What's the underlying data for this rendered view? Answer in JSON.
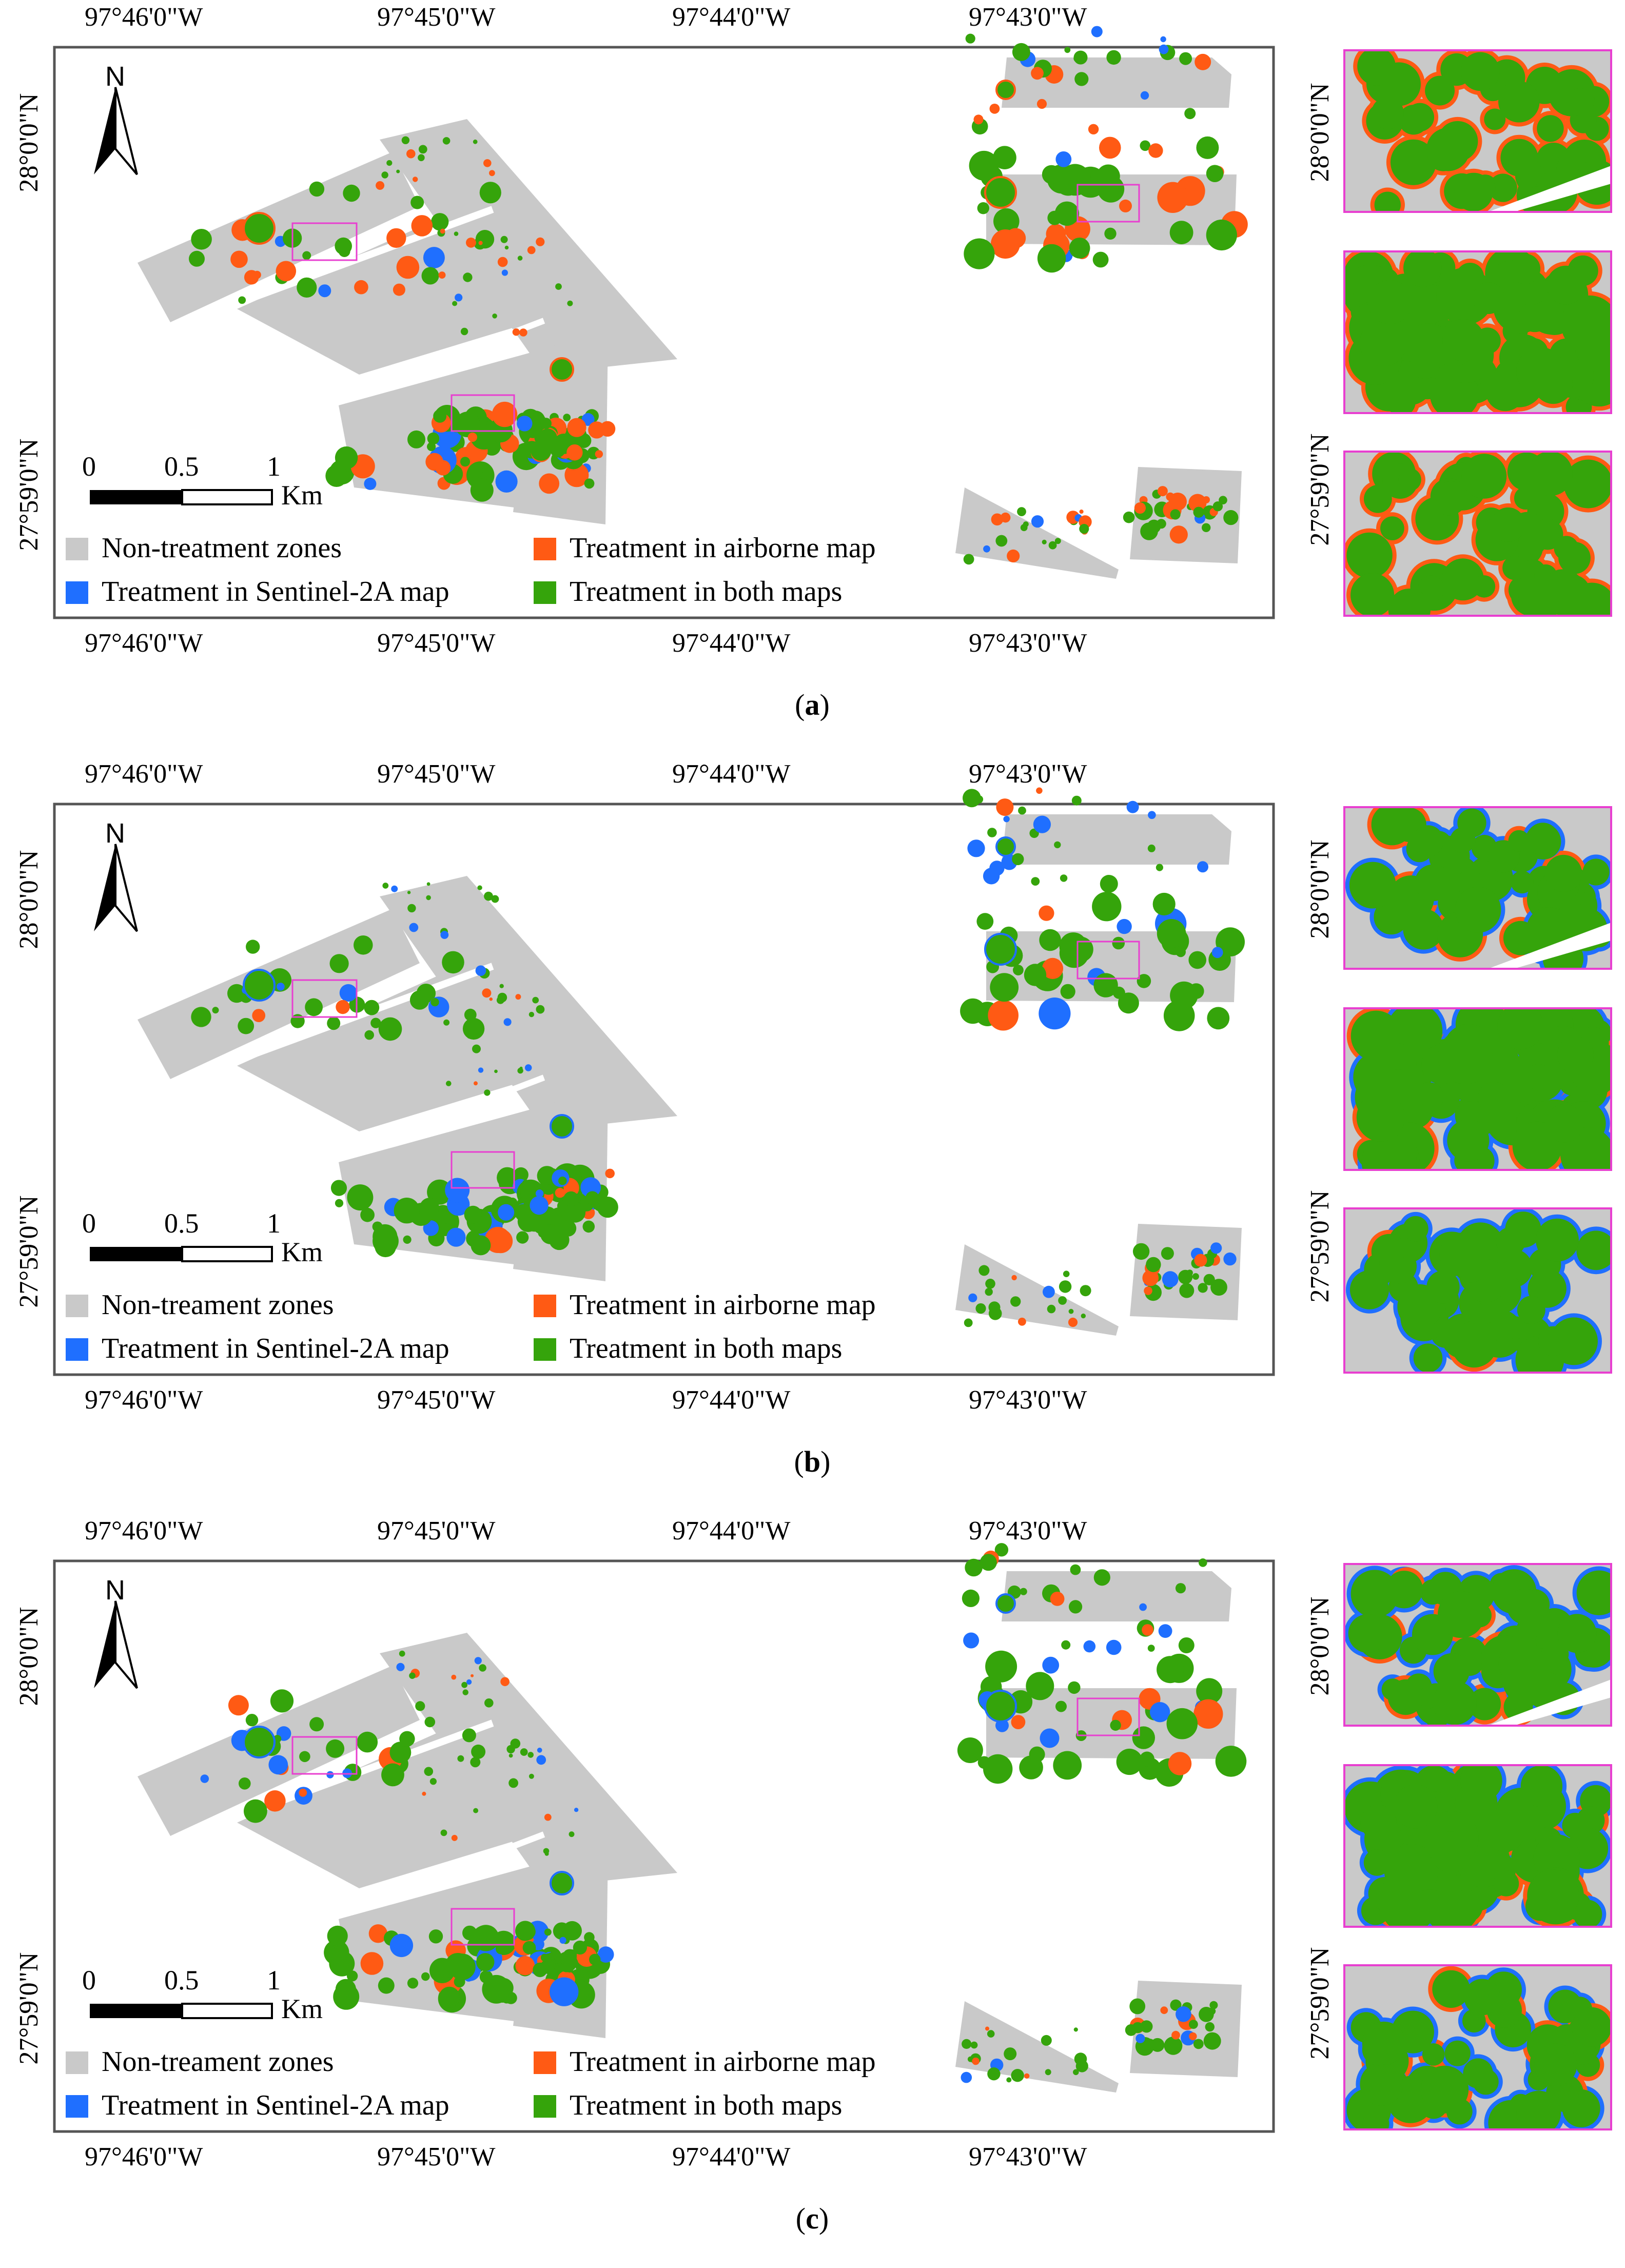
{
  "figure": {
    "colors": {
      "non_treatment": "#c9c9c9",
      "airborne_only": "#ff5a14",
      "sentinel_only": "#1f6fff",
      "both": "#35a40b",
      "zoom_frame": "#e83fd0",
      "map_frame": "#555555"
    },
    "panels": [
      {
        "caption_letter": "a",
        "lon_labels": [
          "97°46'0\"W",
          "97°45'0\"W",
          "97°44'0\"W",
          "97°43'0\"W"
        ],
        "lat_labels": [
          "28°0'0\"N",
          "27°59'0\"N"
        ],
        "north_label": "N",
        "scale": {
          "ticks": [
            "0",
            "0.5",
            "1"
          ],
          "unit": "Km"
        },
        "legend": {
          "non_treatment": "Non-treatment zones",
          "airborne": "Treatment in airborne map",
          "sentinel": "Treatment in Sentinel-2A map",
          "both": "Treatment in both maps"
        }
      },
      {
        "caption_letter": "b",
        "lon_labels": [
          "97°46'0\"W",
          "97°45'0\"W",
          "97°44'0\"W",
          "97°43'0\"W"
        ],
        "lat_labels": [
          "28°0'0\"N",
          "27°59'0\"N"
        ],
        "north_label": "N",
        "scale": {
          "ticks": [
            "0",
            "0.5",
            "1"
          ],
          "unit": "Km"
        },
        "legend": {
          "non_treatment": "Non-treament zones",
          "airborne": "Treatment in airborne map",
          "sentinel": "Treatment in Sentinel-2A map",
          "both": "Treatment in both maps"
        }
      },
      {
        "caption_letter": "c",
        "lon_labels": [
          "97°46'0\"W",
          "97°45'0\"W",
          "97°44'0\"W",
          "97°43'0\"W"
        ],
        "lat_labels": [
          "28°0'0\"N",
          "27°59'0\"N"
        ],
        "north_label": "N",
        "scale": {
          "ticks": [
            "0",
            "0.5",
            "1"
          ],
          "unit": "Km"
        },
        "legend": {
          "non_treatment": "Non-treament zones",
          "airborne": "Treatment in airborne map",
          "sentinel": "Treatment in Sentinel-2A map",
          "both": "Treatment in both maps"
        }
      }
    ]
  }
}
